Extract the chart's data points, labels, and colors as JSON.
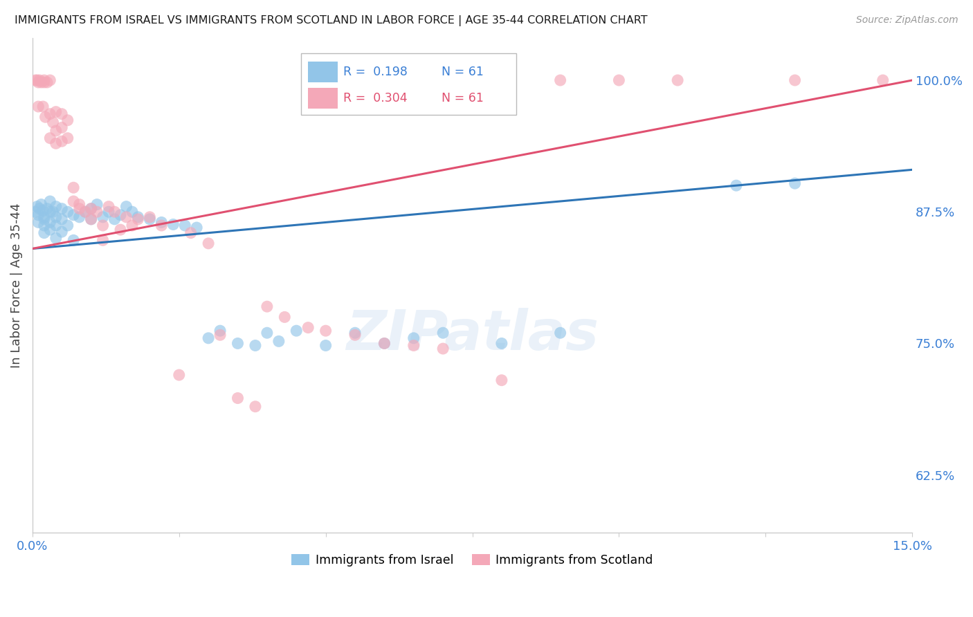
{
  "title": "IMMIGRANTS FROM ISRAEL VS IMMIGRANTS FROM SCOTLAND IN LABOR FORCE | AGE 35-44 CORRELATION CHART",
  "source": "Source: ZipAtlas.com",
  "ylabel": "In Labor Force | Age 35-44",
  "xlim": [
    0.0,
    0.15
  ],
  "ylim": [
    0.57,
    1.04
  ],
  "x_ticks": [
    0.0,
    0.025,
    0.05,
    0.075,
    0.1,
    0.125,
    0.15
  ],
  "y_ticks_right": [
    0.625,
    0.75,
    0.875,
    1.0
  ],
  "y_tick_labels_right": [
    "62.5%",
    "75.0%",
    "87.5%",
    "100.0%"
  ],
  "R_israel": 0.198,
  "R_scotland": 0.304,
  "N_israel": 61,
  "N_scotland": 61,
  "color_israel": "#92C5E8",
  "color_scotland": "#F4A8B8",
  "color_line_israel": "#2E75B6",
  "color_line_scotland": "#E05070",
  "background_color": "#ffffff",
  "grid_color": "#d8d8d8",
  "watermark": "ZIPatlas",
  "legend_israel": "Immigrants from Israel",
  "legend_scotland": "Immigrants from Scotland",
  "israel_x": [
    0.0005,
    0.0008,
    0.001,
    0.001,
    0.0012,
    0.0015,
    0.0018,
    0.002,
    0.002,
    0.002,
    0.002,
    0.0025,
    0.003,
    0.003,
    0.003,
    0.003,
    0.0035,
    0.004,
    0.004,
    0.004,
    0.004,
    0.005,
    0.005,
    0.005,
    0.006,
    0.006,
    0.007,
    0.007,
    0.008,
    0.009,
    0.01,
    0.01,
    0.011,
    0.012,
    0.013,
    0.014,
    0.015,
    0.016,
    0.017,
    0.018,
    0.02,
    0.022,
    0.024,
    0.026,
    0.028,
    0.03,
    0.032,
    0.035,
    0.038,
    0.04,
    0.042,
    0.045,
    0.05,
    0.055,
    0.06,
    0.065,
    0.07,
    0.08,
    0.09,
    0.12,
    0.13
  ],
  "israel_y": [
    0.875,
    0.88,
    0.872,
    0.865,
    0.878,
    0.882,
    0.876,
    0.87,
    0.868,
    0.862,
    0.855,
    0.878,
    0.885,
    0.875,
    0.865,
    0.858,
    0.875,
    0.88,
    0.87,
    0.862,
    0.85,
    0.878,
    0.868,
    0.856,
    0.875,
    0.862,
    0.872,
    0.848,
    0.87,
    0.875,
    0.868,
    0.878,
    0.882,
    0.87,
    0.875,
    0.868,
    0.872,
    0.88,
    0.875,
    0.87,
    0.868,
    0.865,
    0.863,
    0.862,
    0.86,
    0.755,
    0.762,
    0.75,
    0.748,
    0.76,
    0.752,
    0.762,
    0.748,
    0.76,
    0.75,
    0.755,
    0.76,
    0.75,
    0.76,
    0.9,
    0.902
  ],
  "scotland_x": [
    0.0005,
    0.0008,
    0.001,
    0.001,
    0.0012,
    0.0015,
    0.0018,
    0.002,
    0.002,
    0.0022,
    0.0025,
    0.003,
    0.003,
    0.003,
    0.0035,
    0.004,
    0.004,
    0.004,
    0.005,
    0.005,
    0.005,
    0.006,
    0.006,
    0.007,
    0.007,
    0.008,
    0.008,
    0.009,
    0.01,
    0.01,
    0.011,
    0.012,
    0.012,
    0.013,
    0.014,
    0.015,
    0.016,
    0.017,
    0.018,
    0.02,
    0.022,
    0.025,
    0.027,
    0.03,
    0.032,
    0.035,
    0.038,
    0.04,
    0.043,
    0.047,
    0.05,
    0.055,
    0.06,
    0.065,
    0.07,
    0.08,
    0.09,
    0.1,
    0.11,
    0.13,
    0.145
  ],
  "scotland_y": [
    1.0,
    1.0,
    0.998,
    0.975,
    1.0,
    0.998,
    0.975,
    1.0,
    0.998,
    0.965,
    0.998,
    1.0,
    0.968,
    0.945,
    0.96,
    0.97,
    0.952,
    0.94,
    0.968,
    0.955,
    0.942,
    0.962,
    0.945,
    0.898,
    0.885,
    0.882,
    0.878,
    0.875,
    0.878,
    0.868,
    0.875,
    0.862,
    0.848,
    0.88,
    0.875,
    0.858,
    0.87,
    0.862,
    0.868,
    0.87,
    0.862,
    0.72,
    0.855,
    0.845,
    0.758,
    0.698,
    0.69,
    0.785,
    0.775,
    0.765,
    0.762,
    0.758,
    0.75,
    0.748,
    0.745,
    0.715,
    1.0,
    1.0,
    1.0,
    1.0,
    1.0
  ]
}
